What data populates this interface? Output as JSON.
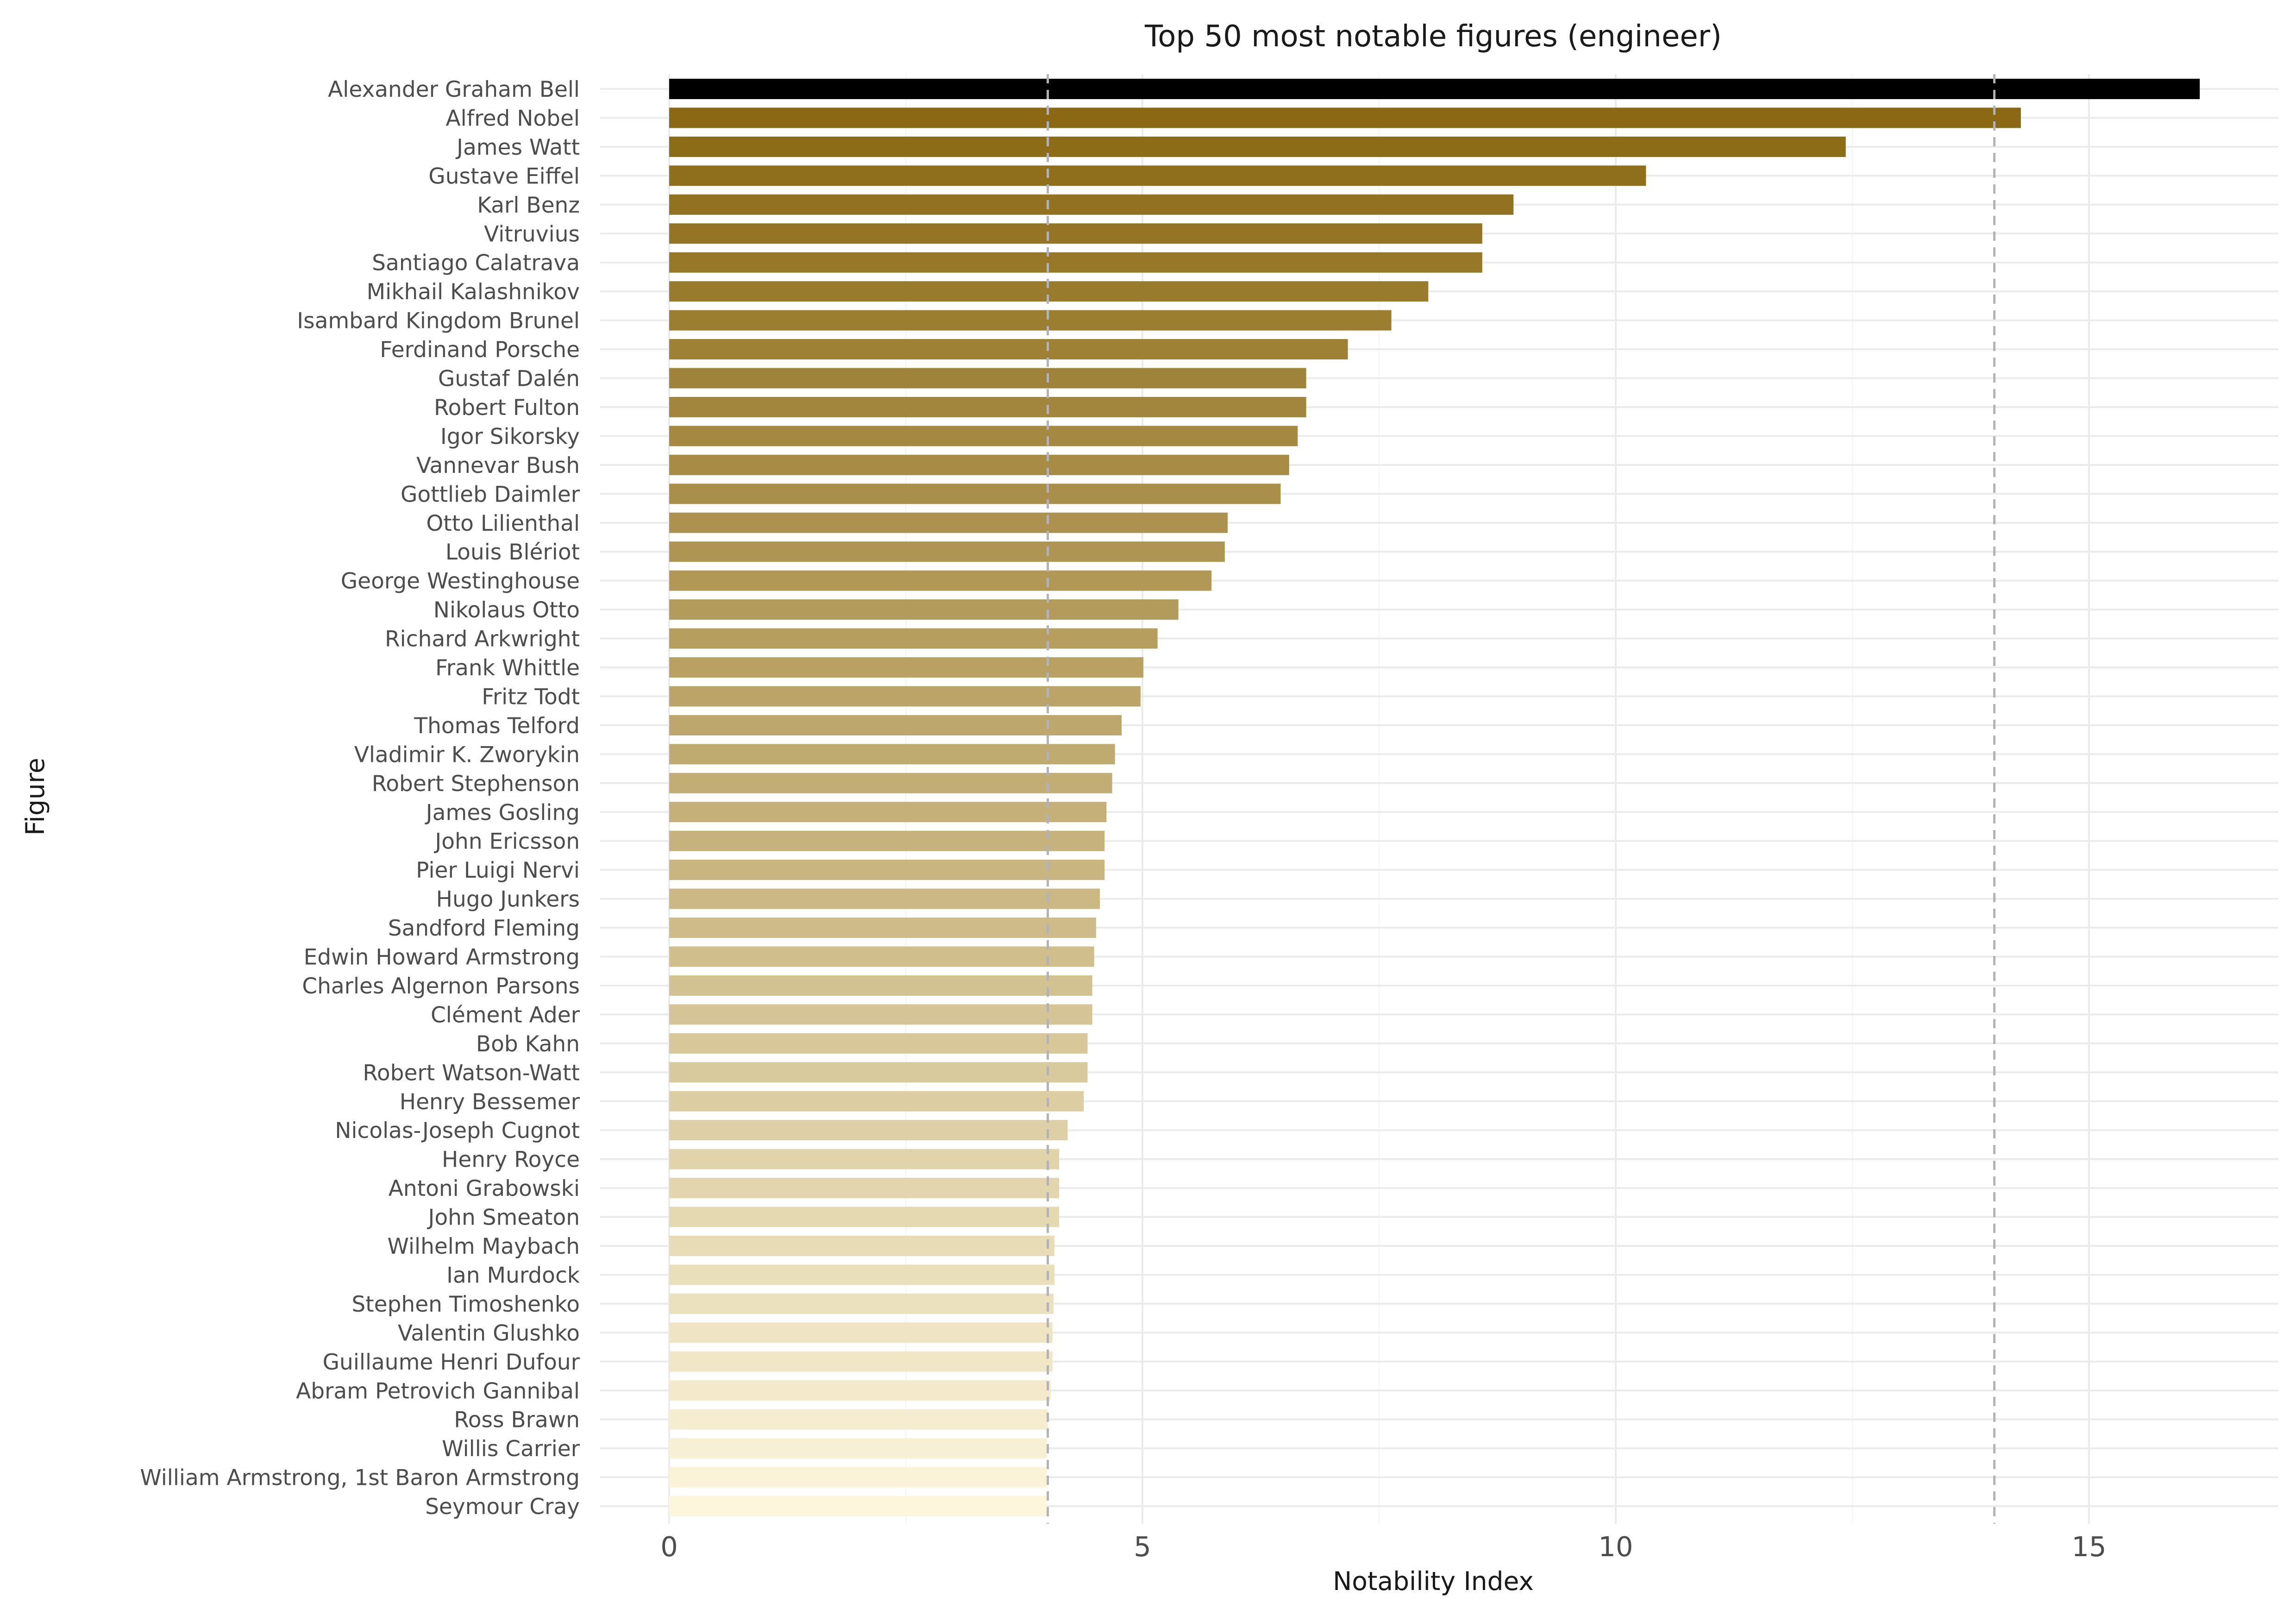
{
  "chart_data": {
    "type": "bar",
    "orientation": "horizontal",
    "title": "Top 50 most notable figures (engineer)",
    "xlabel": "Notability Index",
    "ylabel": "Figure",
    "xlim": [
      0,
      16.5
    ],
    "xticks": [
      0,
      5,
      10,
      15
    ],
    "reference_lines": [
      4,
      14
    ],
    "grid": true,
    "legend": "none",
    "colors": {
      "top_bar": "#000000",
      "gradient_dark": "#8b6914",
      "gradient_light": "#fdf6dc"
    },
    "categories": [
      "Alexander Graham Bell",
      "Alfred Nobel",
      "James Watt",
      "Gustave Eiffel",
      "Karl Benz",
      "Vitruvius",
      "Santiago Calatrava",
      "Mikhail Kalashnikov",
      "Isambard Kingdom Brunel",
      "Ferdinand Porsche",
      "Gustaf Dalén",
      "Robert Fulton",
      "Igor Sikorsky",
      "Vannevar Bush",
      "Gottlieb Daimler",
      "Otto Lilienthal",
      "Louis Blériot",
      "George Westinghouse",
      "Nikolaus Otto",
      "Richard Arkwright",
      "Frank Whittle",
      "Fritz Todt",
      "Thomas Telford",
      "Vladimir K. Zworykin",
      "Robert Stephenson",
      "James Gosling",
      "John Ericsson",
      "Pier Luigi Nervi",
      "Hugo Junkers",
      "Sandford Fleming",
      "Edwin Howard Armstrong",
      "Charles Algernon Parsons",
      "Clément Ader",
      "Bob Kahn",
      "Robert Watson-Watt",
      "Henry Bessemer",
      "Nicolas-Joseph Cugnot",
      "Henry Royce",
      "Antoni Grabowski",
      "John Smeaton",
      "Wilhelm Maybach",
      "Ian Murdock",
      "Stephen Timoshenko",
      "Valentin Glushko",
      "Guillaume Henri Dufour",
      "Abram Petrovich Gannibal",
      "Ross Brawn",
      "Willis Carrier",
      "William Armstrong, 1st Baron Armstrong",
      "Seymour Cray"
    ],
    "values": [
      16.17,
      14.28,
      12.43,
      10.32,
      8.92,
      8.59,
      8.59,
      8.02,
      7.63,
      7.17,
      6.73,
      6.73,
      6.64,
      6.55,
      6.46,
      5.9,
      5.87,
      5.73,
      5.38,
      5.16,
      5.01,
      4.98,
      4.78,
      4.71,
      4.68,
      4.62,
      4.6,
      4.6,
      4.55,
      4.51,
      4.49,
      4.47,
      4.47,
      4.42,
      4.42,
      4.38,
      4.21,
      4.12,
      4.12,
      4.12,
      4.07,
      4.07,
      4.06,
      4.05,
      4.05,
      4.03,
      4.0,
      3.99,
      3.99,
      3.99
    ]
  }
}
